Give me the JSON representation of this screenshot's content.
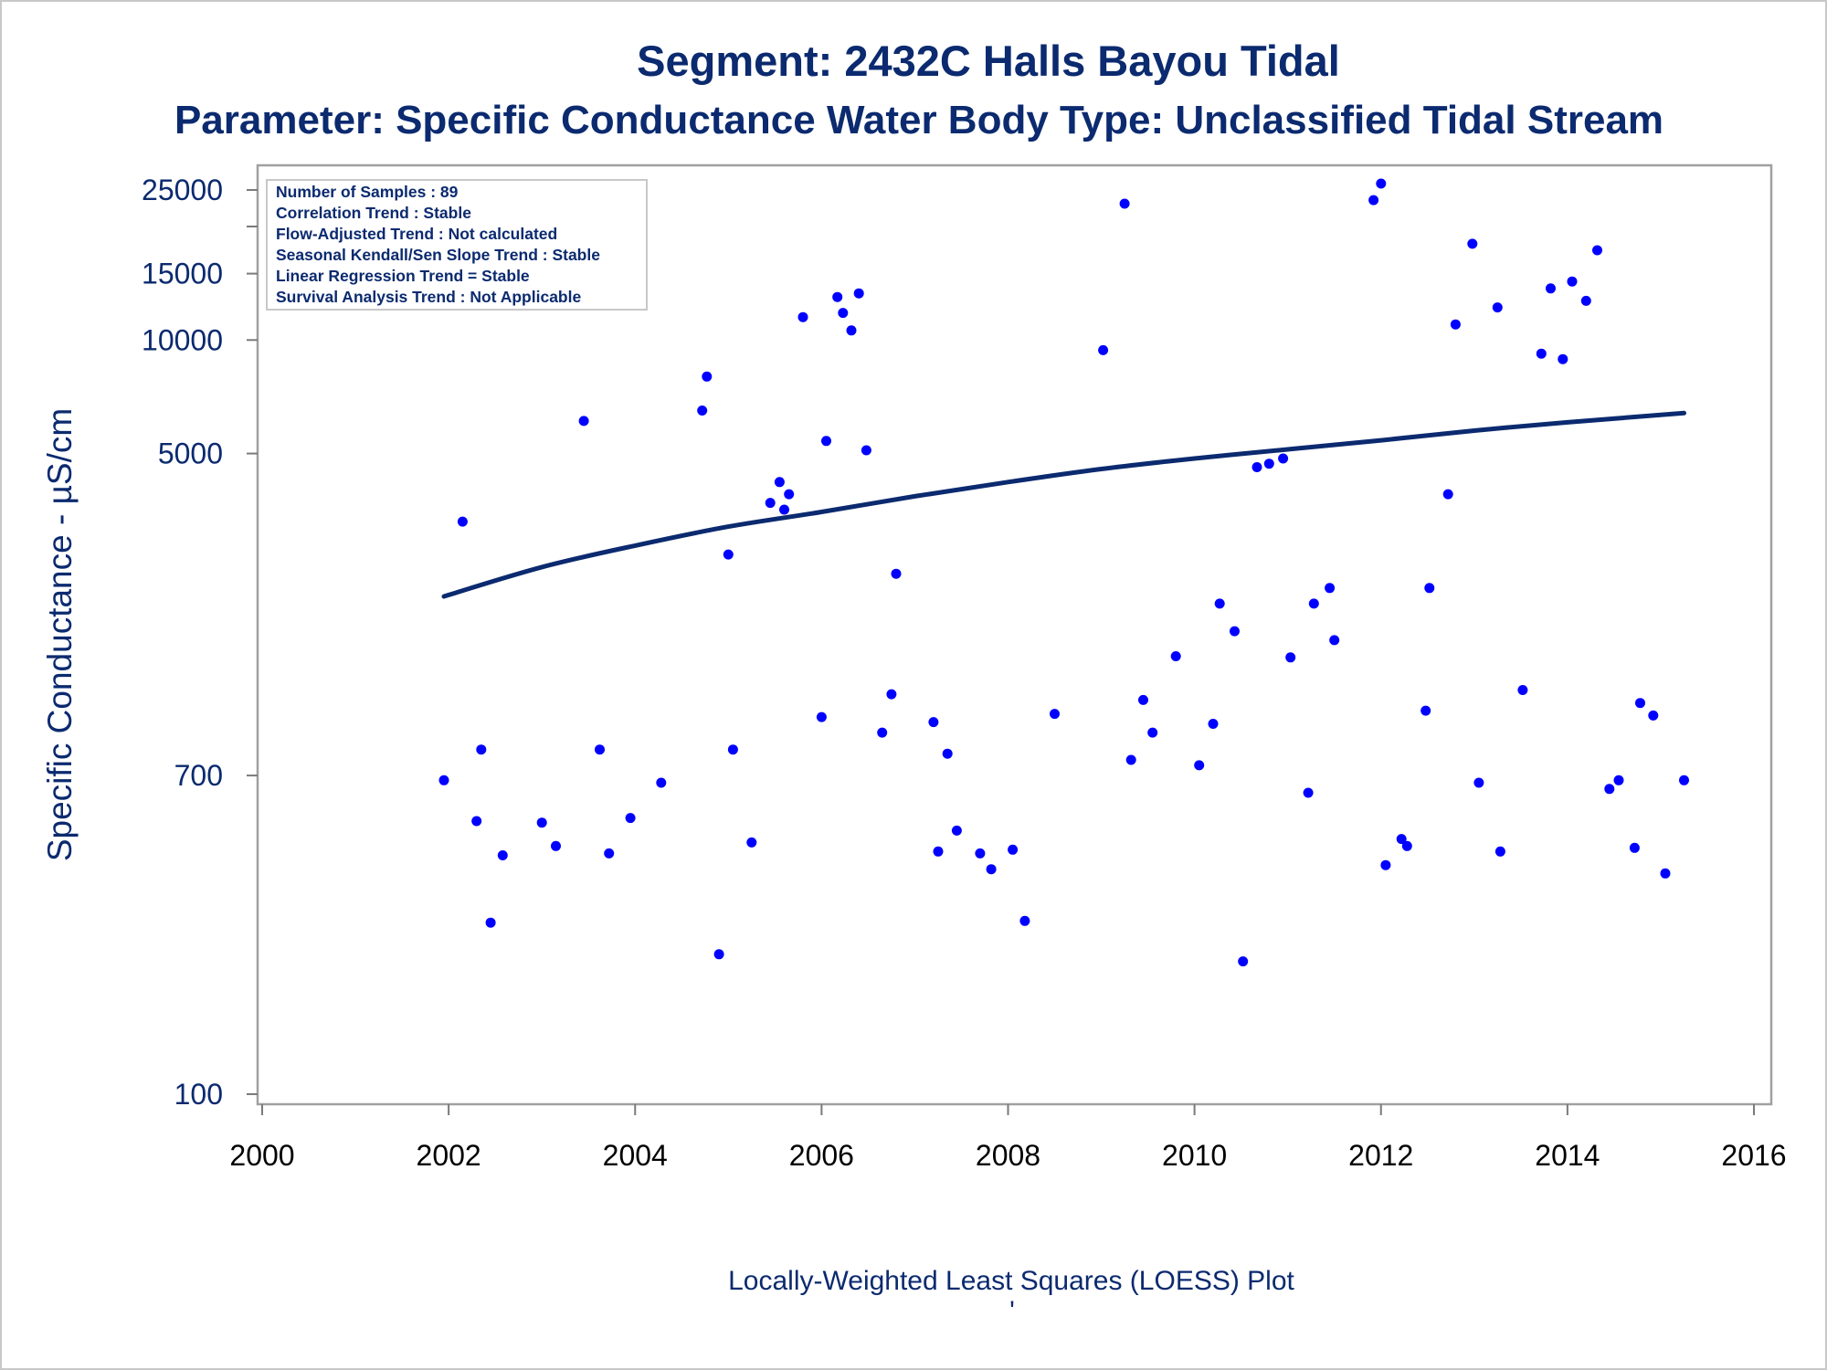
{
  "chart_data": {
    "type": "scatter",
    "title": "Segment: 2432C  Halls Bayou Tidal",
    "subtitle": "Parameter: Specific Conductance   Water Body Type: Unclassified Tidal Stream",
    "xlabel": "",
    "ylabel": "Specific Conductance -  µS/cm",
    "footnote": "Locally-Weighted Least Squares (LOESS) Plot",
    "footnote_mark": "'",
    "yscale": "log",
    "xlim": [
      2000,
      2016
    ],
    "ylim": [
      100,
      27000
    ],
    "x_ticks": [
      "2000",
      "2002",
      "2004",
      "2006",
      "2008",
      "2010",
      "2012",
      "2014",
      "2016"
    ],
    "y_ticks": [
      {
        "value": 100,
        "label": "100"
      },
      {
        "value": 700,
        "label": "700"
      },
      {
        "value": 5000,
        "label": "5000"
      },
      {
        "value": 10000,
        "label": "10000"
      },
      {
        "value": 15000,
        "label": "15000"
      },
      {
        "value": 25000,
        "label": "25000"
      }
    ],
    "y_minor_ticks": [
      20000
    ],
    "grid": false,
    "legend": "none",
    "stats_box": {
      "placement": "top-left",
      "lines": [
        "Number of Samples : 89",
        "Correlation Trend : Stable",
        "Flow-Adjusted Trend : Not calculated",
        "Seasonal Kendall/Sen Slope Trend : Stable",
        "Linear Regression Trend = Stable",
        "Survival Analysis Trend : Not Applicable"
      ]
    },
    "colors": {
      "points": "#0000ff",
      "trend": "#0b2a6f",
      "text": "#0b2a6f",
      "frame": "#a0a0a0"
    },
    "series": [
      {
        "kind": "points",
        "points": [
          [
            2001.95,
            680
          ],
          [
            2002.15,
            3300
          ],
          [
            2002.3,
            530
          ],
          [
            2002.35,
            820
          ],
          [
            2002.45,
            285
          ],
          [
            2002.58,
            430
          ],
          [
            2003.0,
            525
          ],
          [
            2003.15,
            455
          ],
          [
            2003.45,
            6100
          ],
          [
            2003.62,
            820
          ],
          [
            2003.72,
            435
          ],
          [
            2003.95,
            540
          ],
          [
            2004.28,
            670
          ],
          [
            2004.72,
            6500
          ],
          [
            2004.77,
            8000
          ],
          [
            2004.9,
            235
          ],
          [
            2005.0,
            2700
          ],
          [
            2005.05,
            820
          ],
          [
            2005.25,
            465
          ],
          [
            2005.45,
            3700
          ],
          [
            2005.55,
            4200
          ],
          [
            2005.6,
            3550
          ],
          [
            2005.65,
            3900
          ],
          [
            2005.8,
            11500
          ],
          [
            2006.0,
            1000
          ],
          [
            2006.05,
            5400
          ],
          [
            2006.17,
            13000
          ],
          [
            2006.23,
            11800
          ],
          [
            2006.32,
            10600
          ],
          [
            2006.4,
            13300
          ],
          [
            2006.48,
            5100
          ],
          [
            2006.65,
            910
          ],
          [
            2006.75,
            1150
          ],
          [
            2006.8,
            2400
          ],
          [
            2007.2,
            970
          ],
          [
            2007.25,
            440
          ],
          [
            2007.35,
            800
          ],
          [
            2007.45,
            500
          ],
          [
            2007.7,
            435
          ],
          [
            2007.82,
            395
          ],
          [
            2008.05,
            445
          ],
          [
            2008.18,
            288
          ],
          [
            2008.5,
            1020
          ],
          [
            2009.02,
            9400
          ],
          [
            2009.25,
            23000
          ],
          [
            2009.32,
            770
          ],
          [
            2009.45,
            1110
          ],
          [
            2009.55,
            910
          ],
          [
            2009.8,
            1450
          ],
          [
            2010.05,
            745
          ],
          [
            2010.2,
            960
          ],
          [
            2010.27,
            2000
          ],
          [
            2010.43,
            1690
          ],
          [
            2010.52,
            225
          ],
          [
            2010.67,
            4600
          ],
          [
            2010.8,
            4700
          ],
          [
            2010.95,
            4850
          ],
          [
            2011.03,
            1440
          ],
          [
            2011.22,
            630
          ],
          [
            2011.28,
            2000
          ],
          [
            2011.45,
            2200
          ],
          [
            2011.5,
            1600
          ],
          [
            2012.0,
            26000
          ],
          [
            2011.92,
            23500
          ],
          [
            2012.05,
            405
          ],
          [
            2012.22,
            475
          ],
          [
            2012.28,
            455
          ],
          [
            2012.48,
            1040
          ],
          [
            2012.52,
            2200
          ],
          [
            2012.72,
            3900
          ],
          [
            2012.8,
            11000
          ],
          [
            2012.98,
            18000
          ],
          [
            2013.05,
            670
          ],
          [
            2013.25,
            12200
          ],
          [
            2013.28,
            440
          ],
          [
            2013.52,
            1180
          ],
          [
            2013.72,
            9200
          ],
          [
            2013.82,
            13700
          ],
          [
            2013.95,
            8900
          ],
          [
            2014.05,
            14300
          ],
          [
            2014.2,
            12700
          ],
          [
            2014.32,
            17300
          ],
          [
            2014.45,
            645
          ],
          [
            2014.55,
            680
          ],
          [
            2014.72,
            450
          ],
          [
            2014.78,
            1090
          ],
          [
            2014.92,
            1010
          ],
          [
            2015.05,
            385
          ],
          [
            2015.25,
            680
          ]
        ]
      },
      {
        "kind": "line",
        "points": [
          [
            2001.95,
            2090
          ],
          [
            2003.0,
            2500
          ],
          [
            2004.0,
            2850
          ],
          [
            2005.0,
            3200
          ],
          [
            2006.0,
            3500
          ],
          [
            2007.0,
            3850
          ],
          [
            2008.0,
            4200
          ],
          [
            2009.0,
            4550
          ],
          [
            2010.0,
            4850
          ],
          [
            2011.0,
            5130
          ],
          [
            2012.0,
            5420
          ],
          [
            2013.0,
            5750
          ],
          [
            2014.0,
            6050
          ],
          [
            2015.25,
            6400
          ]
        ]
      }
    ]
  }
}
